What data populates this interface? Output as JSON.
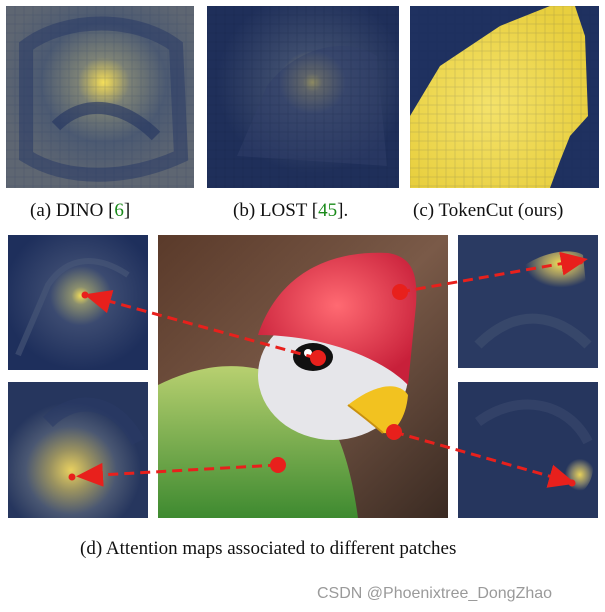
{
  "top_panels": [
    {
      "caption_prefix": "(a) DINO [",
      "ref": "6",
      "caption_suffix": "]"
    },
    {
      "caption_prefix": "(b) LOST [",
      "ref": "45",
      "caption_suffix": "]."
    },
    {
      "caption_prefix": "(c) TokenCut (ours)",
      "ref": "",
      "caption_suffix": ""
    }
  ],
  "bottom_caption": "(d) Attention maps associated to different patches",
  "watermark": "CSDN @Phoenixtree_DongZhao",
  "colors": {
    "map_dark": "#1e2f5c",
    "map_mid": "#5a6a7a",
    "map_bright": "#f2dd5a",
    "arrow": "#e8201c",
    "ref_green": "#1a8a1a"
  }
}
